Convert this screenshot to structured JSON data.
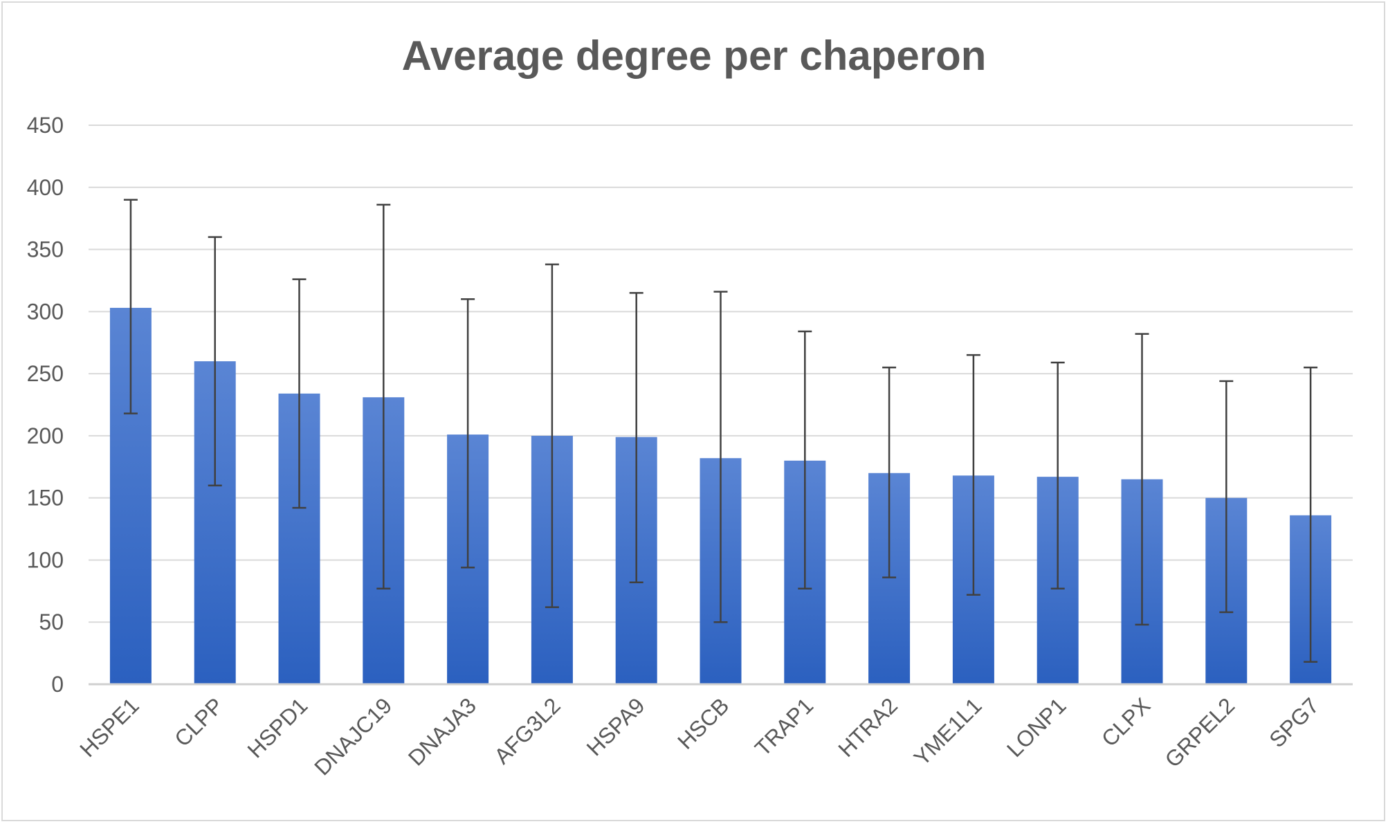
{
  "chart_data": {
    "type": "bar",
    "title": "Average degree per chaperon",
    "xlabel": "",
    "ylabel": "",
    "ylim": [
      0,
      450
    ],
    "yticks": [
      0,
      50,
      100,
      150,
      200,
      250,
      300,
      350,
      400,
      450
    ],
    "grid": true,
    "legend": "none",
    "categories": [
      "HSPE1",
      "CLPP",
      "HSPD1",
      "DNAJC19",
      "DNAJA3",
      "AFG3L2",
      "HSPA9",
      "HSCB",
      "TRAP1",
      "HTRA2",
      "YME1L1",
      "LONP1",
      "CLPX",
      "GRPEL2",
      "SPG7"
    ],
    "values": [
      303,
      260,
      234,
      231,
      201,
      200,
      199,
      182,
      180,
      170,
      168,
      167,
      165,
      150,
      136
    ],
    "error_low": [
      218,
      160,
      142,
      77,
      94,
      62,
      82,
      50,
      77,
      86,
      72,
      77,
      48,
      58,
      18
    ],
    "error_high": [
      390,
      360,
      326,
      386,
      310,
      338,
      315,
      316,
      284,
      255,
      265,
      259,
      282,
      244,
      255
    ],
    "colors": {
      "bar_top": "#5a85d4",
      "bar_bottom": "#2b60bf",
      "error_bar": "#404040",
      "grid": "#d9d9d9",
      "axis": "#d0d0d0",
      "text": "#595959"
    }
  }
}
